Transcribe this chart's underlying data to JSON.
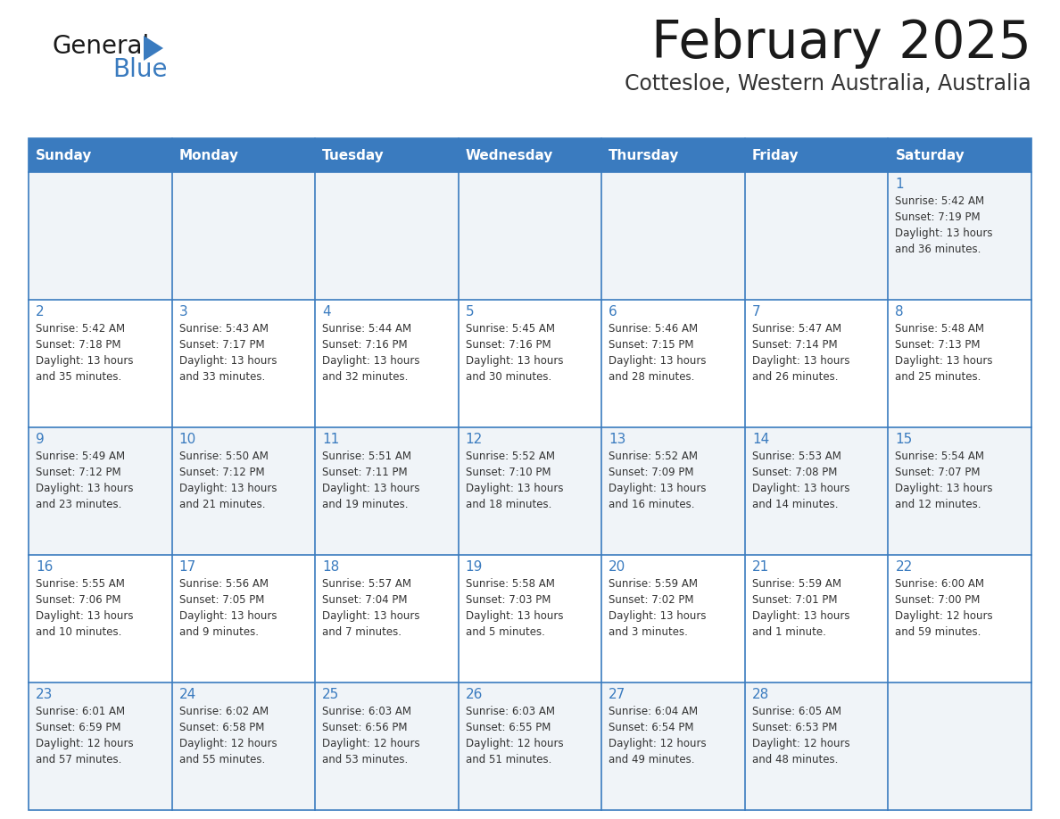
{
  "title": "February 2025",
  "subtitle": "Cottesloe, Western Australia, Australia",
  "header_bg": "#3a7bbf",
  "header_text": "#ffffff",
  "cell_bg_light": "#f0f4f8",
  "cell_bg_white": "#ffffff",
  "border_color": "#3a7bbf",
  "title_color": "#1a1a1a",
  "subtitle_color": "#333333",
  "day_number_color": "#3a7bbf",
  "cell_text_color": "#333333",
  "days_of_week": [
    "Sunday",
    "Monday",
    "Tuesday",
    "Wednesday",
    "Thursday",
    "Friday",
    "Saturday"
  ],
  "weeks": [
    [
      {
        "day": null,
        "text": ""
      },
      {
        "day": null,
        "text": ""
      },
      {
        "day": null,
        "text": ""
      },
      {
        "day": null,
        "text": ""
      },
      {
        "day": null,
        "text": ""
      },
      {
        "day": null,
        "text": ""
      },
      {
        "day": 1,
        "text": "Sunrise: 5:42 AM\nSunset: 7:19 PM\nDaylight: 13 hours\nand 36 minutes."
      }
    ],
    [
      {
        "day": 2,
        "text": "Sunrise: 5:42 AM\nSunset: 7:18 PM\nDaylight: 13 hours\nand 35 minutes."
      },
      {
        "day": 3,
        "text": "Sunrise: 5:43 AM\nSunset: 7:17 PM\nDaylight: 13 hours\nand 33 minutes."
      },
      {
        "day": 4,
        "text": "Sunrise: 5:44 AM\nSunset: 7:16 PM\nDaylight: 13 hours\nand 32 minutes."
      },
      {
        "day": 5,
        "text": "Sunrise: 5:45 AM\nSunset: 7:16 PM\nDaylight: 13 hours\nand 30 minutes."
      },
      {
        "day": 6,
        "text": "Sunrise: 5:46 AM\nSunset: 7:15 PM\nDaylight: 13 hours\nand 28 minutes."
      },
      {
        "day": 7,
        "text": "Sunrise: 5:47 AM\nSunset: 7:14 PM\nDaylight: 13 hours\nand 26 minutes."
      },
      {
        "day": 8,
        "text": "Sunrise: 5:48 AM\nSunset: 7:13 PM\nDaylight: 13 hours\nand 25 minutes."
      }
    ],
    [
      {
        "day": 9,
        "text": "Sunrise: 5:49 AM\nSunset: 7:12 PM\nDaylight: 13 hours\nand 23 minutes."
      },
      {
        "day": 10,
        "text": "Sunrise: 5:50 AM\nSunset: 7:12 PM\nDaylight: 13 hours\nand 21 minutes."
      },
      {
        "day": 11,
        "text": "Sunrise: 5:51 AM\nSunset: 7:11 PM\nDaylight: 13 hours\nand 19 minutes."
      },
      {
        "day": 12,
        "text": "Sunrise: 5:52 AM\nSunset: 7:10 PM\nDaylight: 13 hours\nand 18 minutes."
      },
      {
        "day": 13,
        "text": "Sunrise: 5:52 AM\nSunset: 7:09 PM\nDaylight: 13 hours\nand 16 minutes."
      },
      {
        "day": 14,
        "text": "Sunrise: 5:53 AM\nSunset: 7:08 PM\nDaylight: 13 hours\nand 14 minutes."
      },
      {
        "day": 15,
        "text": "Sunrise: 5:54 AM\nSunset: 7:07 PM\nDaylight: 13 hours\nand 12 minutes."
      }
    ],
    [
      {
        "day": 16,
        "text": "Sunrise: 5:55 AM\nSunset: 7:06 PM\nDaylight: 13 hours\nand 10 minutes."
      },
      {
        "day": 17,
        "text": "Sunrise: 5:56 AM\nSunset: 7:05 PM\nDaylight: 13 hours\nand 9 minutes."
      },
      {
        "day": 18,
        "text": "Sunrise: 5:57 AM\nSunset: 7:04 PM\nDaylight: 13 hours\nand 7 minutes."
      },
      {
        "day": 19,
        "text": "Sunrise: 5:58 AM\nSunset: 7:03 PM\nDaylight: 13 hours\nand 5 minutes."
      },
      {
        "day": 20,
        "text": "Sunrise: 5:59 AM\nSunset: 7:02 PM\nDaylight: 13 hours\nand 3 minutes."
      },
      {
        "day": 21,
        "text": "Sunrise: 5:59 AM\nSunset: 7:01 PM\nDaylight: 13 hours\nand 1 minute."
      },
      {
        "day": 22,
        "text": "Sunrise: 6:00 AM\nSunset: 7:00 PM\nDaylight: 12 hours\nand 59 minutes."
      }
    ],
    [
      {
        "day": 23,
        "text": "Sunrise: 6:01 AM\nSunset: 6:59 PM\nDaylight: 12 hours\nand 57 minutes."
      },
      {
        "day": 24,
        "text": "Sunrise: 6:02 AM\nSunset: 6:58 PM\nDaylight: 12 hours\nand 55 minutes."
      },
      {
        "day": 25,
        "text": "Sunrise: 6:03 AM\nSunset: 6:56 PM\nDaylight: 12 hours\nand 53 minutes."
      },
      {
        "day": 26,
        "text": "Sunrise: 6:03 AM\nSunset: 6:55 PM\nDaylight: 12 hours\nand 51 minutes."
      },
      {
        "day": 27,
        "text": "Sunrise: 6:04 AM\nSunset: 6:54 PM\nDaylight: 12 hours\nand 49 minutes."
      },
      {
        "day": 28,
        "text": "Sunrise: 6:05 AM\nSunset: 6:53 PM\nDaylight: 12 hours\nand 48 minutes."
      },
      {
        "day": null,
        "text": ""
      }
    ]
  ],
  "logo_text1": "General",
  "logo_text2": "Blue",
  "logo_color1": "#1a1a1a",
  "logo_color2": "#3a7bbf",
  "logo_triangle_color": "#3a7bbf",
  "fig_width": 11.88,
  "fig_height": 9.18,
  "dpi": 100
}
